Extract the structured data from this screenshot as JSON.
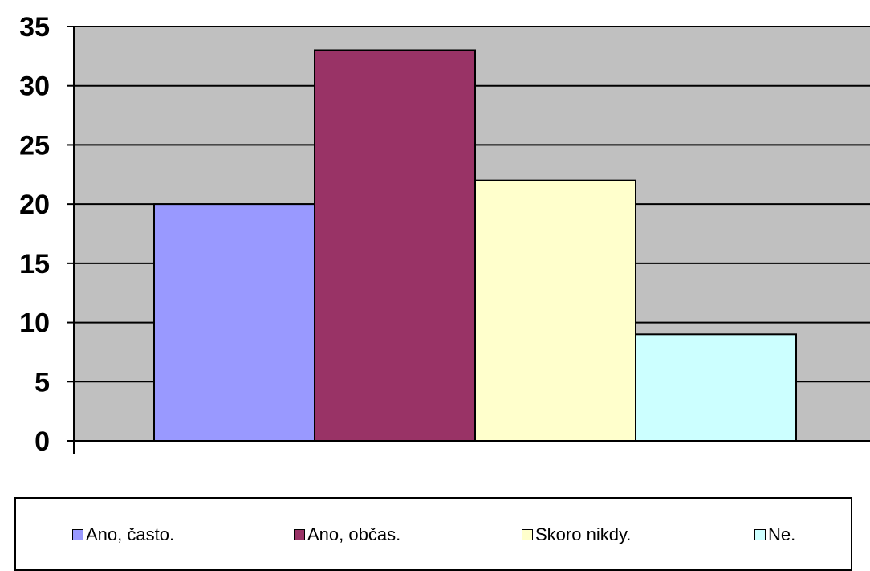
{
  "chart_data": {
    "type": "bar",
    "categories": [
      "Ano, často.",
      "Ano, občas.",
      "Skoro nikdy.",
      "Ne."
    ],
    "series": [
      {
        "name": "Ano, často.",
        "value": 20,
        "color": "#9999ff"
      },
      {
        "name": "Ano, občas.",
        "value": 33,
        "color": "#993366"
      },
      {
        "name": "Skoro nikdy.",
        "value": 22,
        "color": "#ffffcc"
      },
      {
        "name": "Ne.",
        "value": 9,
        "color": "#ccffff"
      }
    ],
    "values": [
      20,
      33,
      22,
      9
    ],
    "ylim": [
      0,
      35
    ],
    "yticks": [
      "0",
      "5",
      "10",
      "15",
      "20",
      "25",
      "30",
      "35"
    ],
    "grid": true,
    "plot_background": "#c0c0c0",
    "legend_position": "bottom"
  }
}
